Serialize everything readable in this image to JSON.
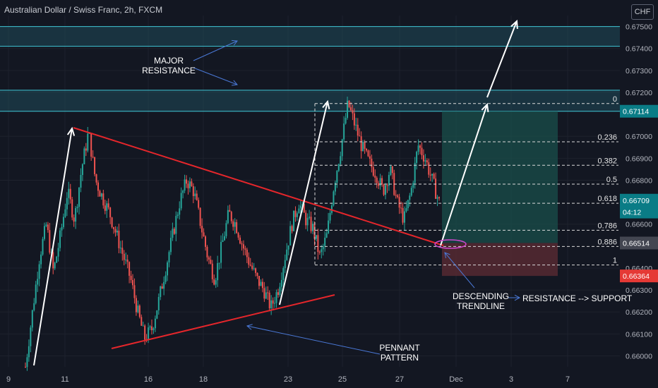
{
  "title": "Australian Dollar / Swiss Franc, 2h, FXCM",
  "currency": "CHF",
  "colors": {
    "background": "#131722",
    "grid": "#1e222d",
    "up": "#26a69a",
    "down": "#ef5350",
    "zone": "#1f4a5a",
    "zone_line": "#3fc7d6",
    "trendline": "#e5262b",
    "annotation_arrow": "#4a78d6",
    "white_arrow": "#ffffff",
    "fib": "#d9d9d9",
    "tp_zone": "#1a4f4b",
    "sl_zone": "#5a2a33",
    "label_blue_bg": "#0a7c86",
    "label_red_bg": "#e53935",
    "label_gray_bg": "#434651",
    "ellipse": "#d048d0"
  },
  "chart_data": {
    "type": "candlestick",
    "x_ticks": [
      "9",
      "11",
      "16",
      "18",
      "23",
      "25",
      "27",
      "Dec",
      "3",
      "7"
    ],
    "y_ticks": [
      "0.66000",
      "0.66100",
      "0.66200",
      "0.66300",
      "0.66400",
      "0.66600",
      "0.66800",
      "0.66900",
      "0.67000",
      "0.67200",
      "0.67300",
      "0.67400",
      "0.67500"
    ],
    "ylim": [
      0.6595,
      0.6755
    ],
    "grid": true,
    "price_labels": [
      {
        "text": "0.67114",
        "value": 0.67114,
        "kind": "blue"
      },
      {
        "text": "0.66709",
        "value": 0.66709,
        "kind": "blue"
      },
      {
        "text": "04:12",
        "value": 0.66655,
        "kind": "blue"
      },
      {
        "text": "0.66514",
        "value": 0.66514,
        "kind": "gray"
      },
      {
        "text": "0.66364",
        "value": 0.66364,
        "kind": "red"
      }
    ],
    "fib_levels": [
      {
        "label": "0",
        "value": 0.67149
      },
      {
        "label": "0.236",
        "value": 0.66975
      },
      {
        "label": "0.382",
        "value": 0.66868
      },
      {
        "label": "0.5",
        "value": 0.66782
      },
      {
        "label": "0.618",
        "value": 0.66695
      },
      {
        "label": "0.786",
        "value": 0.66572
      },
      {
        "label": "0.886",
        "value": 0.66498
      },
      {
        "label": "1",
        "value": 0.66414
      }
    ],
    "resistance_zones": [
      {
        "top": 0.675,
        "bottom": 0.6741
      },
      {
        "top": 0.6721,
        "bottom": 0.67114
      }
    ],
    "price_path": [
      0.6595,
      0.662,
      0.6645,
      0.666,
      0.6638,
      0.6655,
      0.6675,
      0.6662,
      0.6685,
      0.6702,
      0.668,
      0.6672,
      0.6665,
      0.6655,
      0.6645,
      0.6635,
      0.662,
      0.6608,
      0.6612,
      0.6625,
      0.664,
      0.6655,
      0.667,
      0.668,
      0.6675,
      0.666,
      0.6645,
      0.6635,
      0.665,
      0.6665,
      0.666,
      0.665,
      0.6642,
      0.6635,
      0.663,
      0.6622,
      0.663,
      0.6645,
      0.666,
      0.667,
      0.6662,
      0.6658,
      0.6645,
      0.6655,
      0.6678,
      0.6695,
      0.6715,
      0.6705,
      0.6695,
      0.6688,
      0.6683,
      0.6675,
      0.6685,
      0.667,
      0.6662,
      0.6675,
      0.6696,
      0.669,
      0.668,
      0.667
    ],
    "annotations": [
      {
        "name": "major-resistance",
        "text": [
          "MAJOR",
          "RESISTANCE"
        ]
      },
      {
        "name": "pennant-pattern",
        "text": [
          "PENNANT",
          "PATTERN"
        ]
      },
      {
        "name": "descending-trendline",
        "text": [
          "DESCENDING",
          "TRENDLINE"
        ]
      },
      {
        "name": "resistance-support",
        "text": [
          "RESISTANCE --> SUPPORT"
        ]
      }
    ]
  }
}
